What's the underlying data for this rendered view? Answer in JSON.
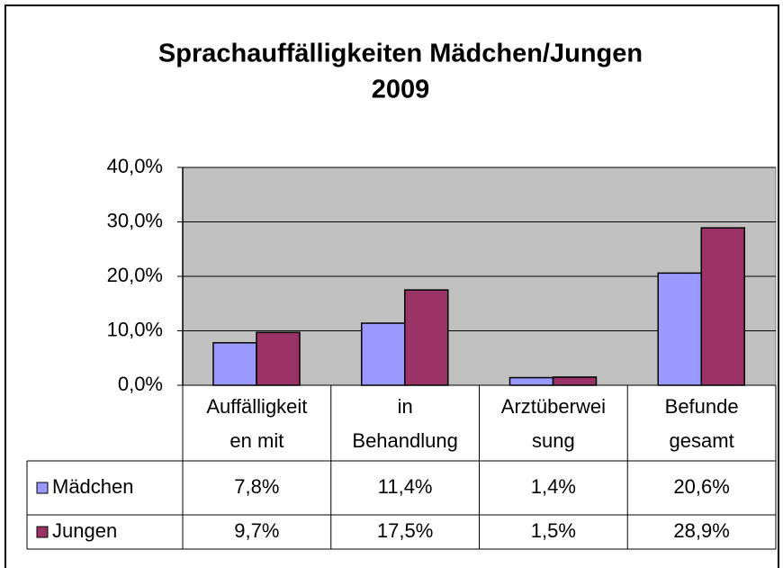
{
  "chart_data": {
    "type": "bar",
    "title": [
      "Sprachauffälligkeiten Mädchen/Jungen",
      "2009"
    ],
    "categories": [
      [
        "Auffälligkeit",
        "en mit"
      ],
      [
        "in",
        "Behandlung"
      ],
      [
        "Arztüberwei",
        "sung"
      ],
      [
        "Befunde",
        "gesamt"
      ]
    ],
    "series": [
      {
        "name": "Mädchen",
        "color": "#9999ff",
        "values": [
          7.8,
          11.4,
          1.4,
          20.6
        ],
        "value_labels": [
          "7,8%",
          "11,4%",
          "1,4%",
          "20,6%"
        ]
      },
      {
        "name": "Jungen",
        "color": "#993366",
        "values": [
          9.7,
          17.5,
          1.5,
          28.9
        ],
        "value_labels": [
          "9,7%",
          "17,5%",
          "1,5%",
          "28,9%"
        ]
      }
    ],
    "ylim": [
      0,
      40
    ],
    "yticks": [
      {
        "value": 0,
        "label": "0,0%"
      },
      {
        "value": 10,
        "label": "10,0%"
      },
      {
        "value": 20,
        "label": "20,0%"
      },
      {
        "value": 30,
        "label": "30,0%"
      },
      {
        "value": 40,
        "label": "40,0%"
      }
    ],
    "grid": true,
    "plot_background": "#c0c0c0"
  }
}
